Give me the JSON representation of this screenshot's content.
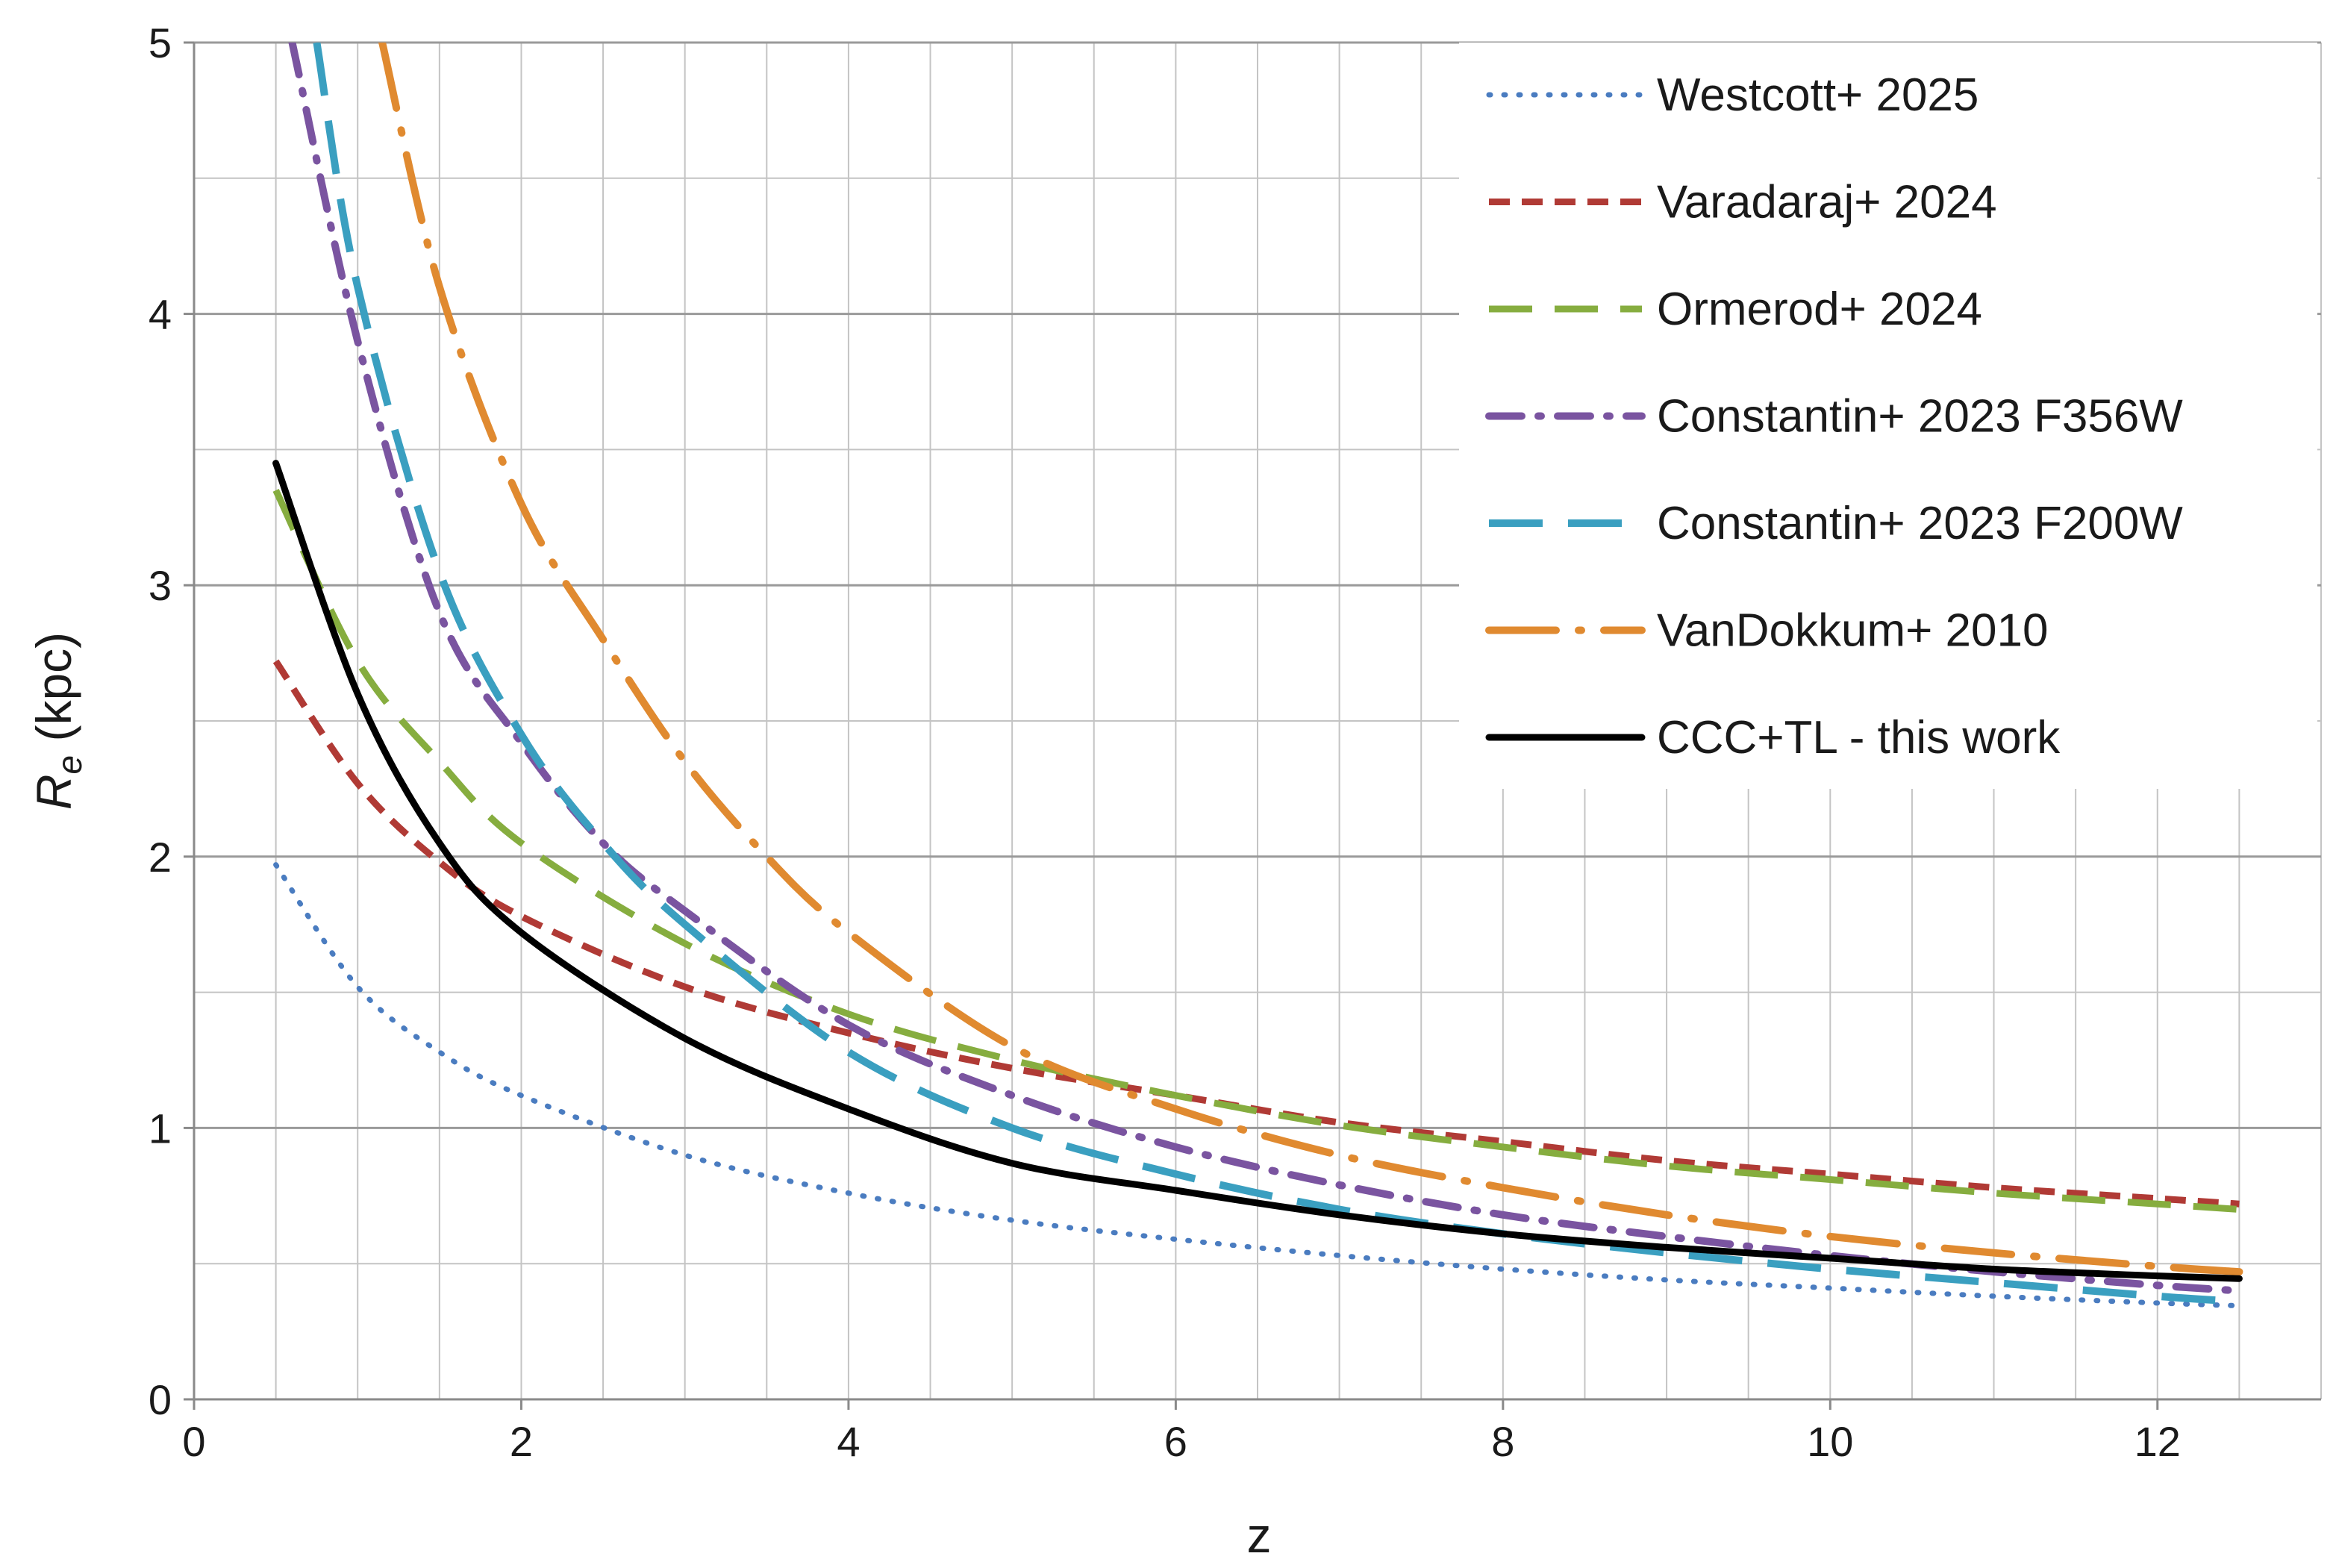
{
  "chart_data": {
    "type": "line",
    "title": "",
    "xlabel": "z",
    "ylabel_main": "R",
    "ylabel_sub": "e",
    "ylabel_unit": " (kpc)",
    "xlim": [
      0,
      13
    ],
    "ylim": [
      0,
      5
    ],
    "xticks": [
      0,
      2,
      4,
      6,
      8,
      10,
      12
    ],
    "yticks": [
      0,
      1,
      2,
      3,
      4,
      5
    ],
    "x_minor_step": 0.5,
    "y_minor_step": 0.5,
    "grid": true,
    "legend_position": "top-right",
    "series": [
      {
        "name": "Westcott+ 2025",
        "color": "#4a7cc0",
        "style": "dotted",
        "x": [
          0.5,
          1,
          1.5,
          2,
          3,
          4,
          5,
          6,
          7,
          8,
          9,
          10,
          11,
          12,
          12.5
        ],
        "y": [
          1.97,
          1.52,
          1.28,
          1.12,
          0.9,
          0.76,
          0.66,
          0.59,
          0.53,
          0.48,
          0.44,
          0.41,
          0.38,
          0.355,
          0.345
        ]
      },
      {
        "name": "Varadaraj+ 2024",
        "color": "#b03a35",
        "style": "short-dash",
        "x": [
          0.5,
          1,
          1.5,
          2,
          3,
          4,
          5,
          6,
          7,
          8,
          9,
          10,
          11,
          12,
          12.5
        ],
        "y": [
          2.72,
          2.27,
          1.98,
          1.78,
          1.52,
          1.35,
          1.22,
          1.12,
          1.02,
          0.95,
          0.88,
          0.83,
          0.78,
          0.74,
          0.72
        ]
      },
      {
        "name": "Ormerod+ 2024",
        "color": "#86ad3f",
        "style": "long-dash",
        "x": [
          0.5,
          1,
          1.5,
          2,
          3,
          4,
          5,
          6,
          7,
          8,
          9,
          10,
          11,
          12,
          12.5
        ],
        "y": [
          3.35,
          2.72,
          2.35,
          2.05,
          1.68,
          1.42,
          1.25,
          1.12,
          1.01,
          0.93,
          0.86,
          0.81,
          0.76,
          0.72,
          0.7
        ]
      },
      {
        "name": "Constantin+ 2023 F356W",
        "color": "#7a54a0",
        "style": "dash-dot",
        "x": [
          0.6,
          1,
          1.5,
          2,
          2.5,
          3,
          4,
          5,
          6,
          7,
          8,
          9,
          10,
          11,
          12,
          12.5
        ],
        "y": [
          5.0,
          3.9,
          2.9,
          2.42,
          2.05,
          1.8,
          1.38,
          1.12,
          0.93,
          0.79,
          0.68,
          0.6,
          0.53,
          0.47,
          0.42,
          0.4
        ]
      },
      {
        "name": "Constantin+ 2023 F200W",
        "color": "#3a9fc0",
        "style": "long-dash-gap",
        "x": [
          0.75,
          1,
          1.5,
          2,
          2.5,
          3,
          4,
          5,
          6,
          7,
          8,
          9,
          10,
          11,
          12,
          12.5
        ],
        "y": [
          5.0,
          4.1,
          3.05,
          2.45,
          2.05,
          1.75,
          1.28,
          1.0,
          0.83,
          0.7,
          0.61,
          0.54,
          0.48,
          0.43,
          0.38,
          0.36
        ]
      },
      {
        "name": "VanDokkum+ 2010",
        "color": "#e08a30",
        "style": "long-dash-dot",
        "x": [
          1.15,
          1.5,
          2,
          2.5,
          3,
          3.5,
          4,
          5,
          6,
          7,
          8,
          9,
          10,
          11,
          12,
          12.5
        ],
        "y": [
          5.0,
          4.1,
          3.3,
          2.8,
          2.35,
          2.0,
          1.72,
          1.3,
          1.07,
          0.9,
          0.78,
          0.68,
          0.6,
          0.54,
          0.49,
          0.47
        ]
      },
      {
        "name": "CCC+TL - this work",
        "color": "#000000",
        "style": "solid",
        "x": [
          0.5,
          1,
          1.5,
          2,
          3,
          4,
          5,
          6,
          7,
          8,
          9,
          10,
          11,
          12,
          12.5
        ],
        "y": [
          3.45,
          2.6,
          2.05,
          1.72,
          1.33,
          1.07,
          0.87,
          0.77,
          0.68,
          0.61,
          0.56,
          0.52,
          0.48,
          0.455,
          0.445
        ]
      }
    ]
  }
}
